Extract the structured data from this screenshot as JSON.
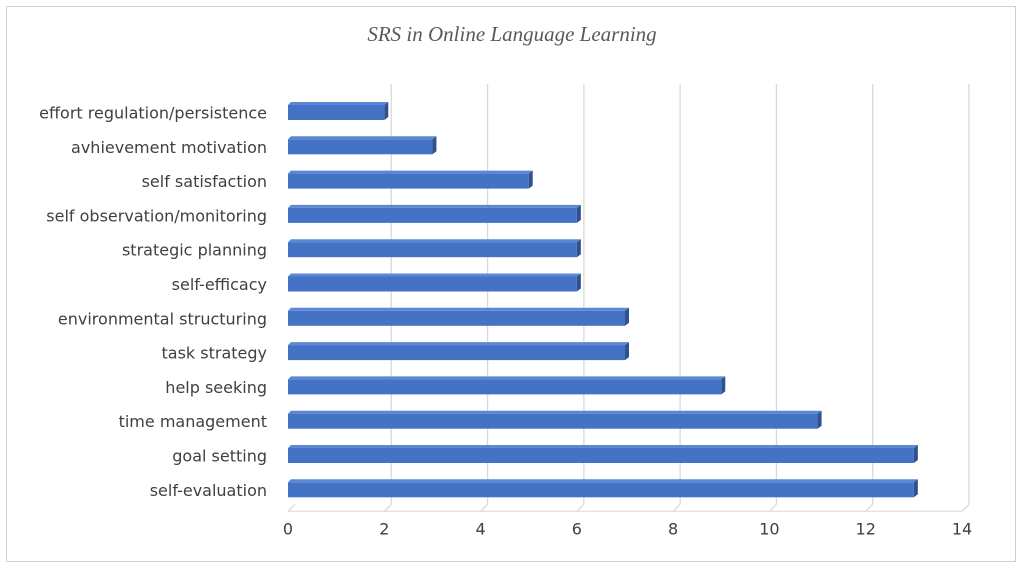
{
  "chart_data": {
    "type": "bar",
    "orientation": "horizontal",
    "style": "3d",
    "title": "SRS in Online Language Learning",
    "xlabel": "",
    "ylabel": "",
    "categories": [
      "effort regulation/persistence",
      "avhievement motivation",
      "self satisfaction",
      "self observation/monitoring",
      "strategic planning",
      "self-efficacy",
      "environmental structuring",
      "task strategy",
      "help seeking",
      "time management",
      "goal setting",
      "self-evaluation"
    ],
    "values": [
      2,
      3,
      5,
      6,
      6,
      6,
      7,
      7,
      9,
      11,
      13,
      13
    ],
    "xlim": [
      0,
      14
    ],
    "xticks": [
      0,
      2,
      4,
      6,
      8,
      10,
      12,
      14
    ],
    "grid": "vertical",
    "legend": "none",
    "colors": {
      "bar_front": "#4472c4",
      "bar_top": "#5b87d6",
      "bar_side": "#2f528f",
      "grid": "#d9d9d9",
      "text": "#404040"
    }
  }
}
